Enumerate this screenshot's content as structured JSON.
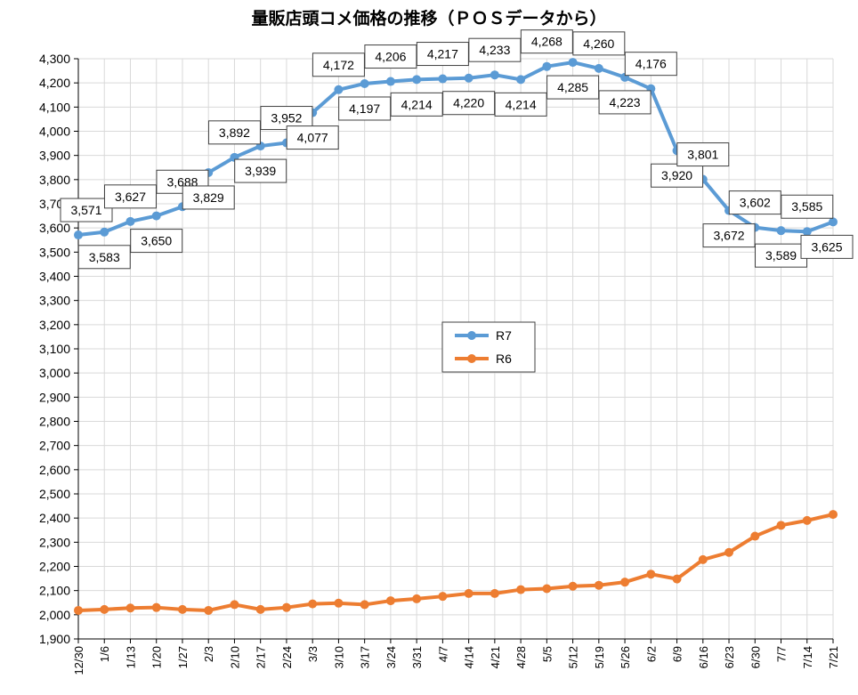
{
  "chart_data": {
    "type": "line",
    "title": "量販店頭コメ価格の推移（ＰＯＳデータから）",
    "xlabel": "",
    "ylabel": "",
    "ylim": [
      1900,
      4300
    ],
    "ystep": 100,
    "grid": "horizontal+vertical",
    "legend": "center",
    "categories": [
      "12/30",
      "1/6",
      "1/13",
      "1/20",
      "1/27",
      "2/3",
      "2/10",
      "2/17",
      "2/24",
      "3/3",
      "3/10",
      "3/17",
      "3/24",
      "3/31",
      "4/7",
      "4/14",
      "4/21",
      "4/28",
      "5/5",
      "5/12",
      "5/19",
      "5/26",
      "6/2",
      "6/9",
      "6/16",
      "6/23",
      "6/30",
      "7/7",
      "7/14",
      "7/21"
    ],
    "series": [
      {
        "name": "R7",
        "color": "#5B9BD5",
        "values": [
          3571,
          3583,
          3627,
          3650,
          3688,
          3829,
          3892,
          3939,
          3952,
          4077,
          4172,
          4197,
          4206,
          4214,
          4217,
          4220,
          4233,
          4214,
          4268,
          4285,
          4260,
          4223,
          4176,
          3920,
          3801,
          3672,
          3602,
          3589,
          3585,
          3625
        ]
      },
      {
        "name": "R6",
        "color": "#ED7D31",
        "values": [
          2018,
          2022,
          2028,
          2030,
          2022,
          2018,
          2042,
          2022,
          2030,
          2045,
          2048,
          2042,
          2058,
          2066,
          2076,
          2088,
          2088,
          2104,
          2108,
          2118,
          2122,
          2135,
          2168,
          2148,
          2228,
          2258,
          2325,
          2370,
          2390,
          2415
        ]
      }
    ]
  }
}
